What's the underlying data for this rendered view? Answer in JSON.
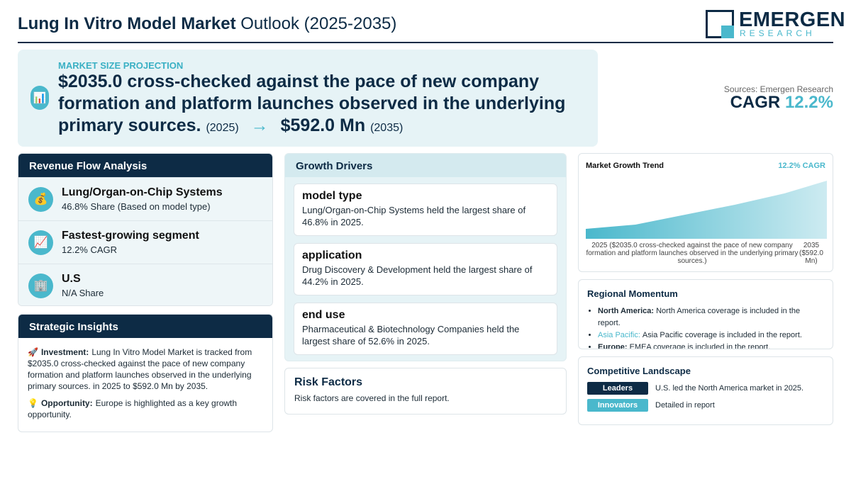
{
  "header": {
    "title_bold": "Lung In Vitro Model Market",
    "title_rest": "Outlook (2025-2035)",
    "logo_main": "EMERGEN",
    "logo_sub": "RESEARCH"
  },
  "projection": {
    "label": "MARKET SIZE PROJECTION",
    "icon": "📊",
    "start_value": "$2035.0 cross-checked against the pace of new company formation and platform launches observed in the underlying primary sources.",
    "start_year": "(2025)",
    "arrow": "→",
    "end_value": "$592.0 Mn",
    "end_year": "(2035)"
  },
  "summary": {
    "sources": "Sources: Emergen Research",
    "cagr_label": "CAGR",
    "cagr_value": "12.2%"
  },
  "revenue_flow": {
    "title": "Revenue Flow Analysis",
    "items": [
      {
        "icon": "💰",
        "title": "Lung/Organ-on-Chip Systems",
        "subtitle": "46.8% Share (Based on model type)"
      },
      {
        "icon": "📈",
        "title": "Fastest-growing segment",
        "subtitle": "12.2% CAGR"
      },
      {
        "icon": "🏢",
        "title": "U.S",
        "subtitle": "N/A Share"
      }
    ]
  },
  "strategic_insights": {
    "title": "Strategic Insights",
    "items": [
      {
        "icon": "🚀",
        "label": "Investment:",
        "text": "Lung In Vitro Model Market is tracked from $2035.0 cross-checked against the pace of new company formation and platform launches observed in the underlying primary sources. in 2025 to $592.0 Mn by 2035."
      },
      {
        "icon": "💡",
        "label": "Opportunity:",
        "text": "Europe is highlighted as a key growth opportunity."
      }
    ]
  },
  "growth_drivers": {
    "title": "Growth Drivers",
    "items": [
      {
        "title": "model type",
        "text": "Lung/Organ-on-Chip Systems held the largest share of 46.8% in 2025."
      },
      {
        "title": "application",
        "text": "Drug Discovery & Development held the largest share of 44.2% in 2025."
      },
      {
        "title": "end use",
        "text": "Pharmaceutical & Biotechnology Companies held the largest share of 52.6% in 2025."
      }
    ]
  },
  "risk_factors": {
    "title": "Risk Factors",
    "text": "Risk factors are covered in the full report."
  },
  "trend": {
    "title": "Market Growth Trend",
    "badge": "12.2% CAGR",
    "start_label": "2025 ($2035.0 cross-checked against the pace of new company formation and platform launches observed in the underlying primary sources.)",
    "end_label": "2035 ($592.0 Mn)"
  },
  "regional": {
    "title": "Regional Momentum",
    "items": [
      {
        "region": "North America:",
        "text": "North America coverage is included in the report."
      },
      {
        "region": "Asia Pacific:",
        "text": "Asia Pacific coverage is included in the report."
      },
      {
        "region": "Europe:",
        "text": "EMEA coverage is included in the report."
      }
    ]
  },
  "competitive": {
    "title": "Competitive Landscape",
    "rows": [
      {
        "tag": "Leaders",
        "text": "U.S. led the North America market in 2025."
      },
      {
        "tag": "Innovators",
        "text": "Detailed in report"
      }
    ]
  }
}
